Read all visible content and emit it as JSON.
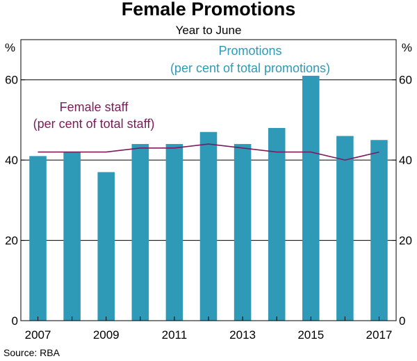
{
  "chart_data": {
    "type": "bar",
    "title": "Female Promotions",
    "subtitle": "Year to June",
    "unit_left": "%",
    "unit_right": "%",
    "categories": [
      "2007",
      "2008",
      "2009",
      "2010",
      "2011",
      "2012",
      "2013",
      "2014",
      "2015",
      "2016",
      "2017"
    ],
    "x_tick_labels": [
      "2007",
      "2009",
      "2011",
      "2013",
      "2015",
      "2017"
    ],
    "ylim": [
      0,
      70
    ],
    "y_ticks": [
      0,
      20,
      40,
      60
    ],
    "grid": true,
    "series": [
      {
        "name": "Promotions",
        "label_line1": "Promotions",
        "label_line2": "(per cent of total promotions)",
        "type": "bar",
        "color": "#2e9ab7",
        "values": [
          41,
          42,
          37,
          44,
          44,
          47,
          44,
          48,
          61,
          46,
          45
        ]
      },
      {
        "name": "Female staff",
        "label_line1": "Female staff",
        "label_line2": "(per cent of total staff)",
        "type": "line",
        "color": "#7b1a5c",
        "values": [
          42,
          42,
          42,
          43,
          43,
          44,
          43,
          42,
          42,
          40,
          42
        ]
      }
    ],
    "source": "Source:   RBA"
  }
}
